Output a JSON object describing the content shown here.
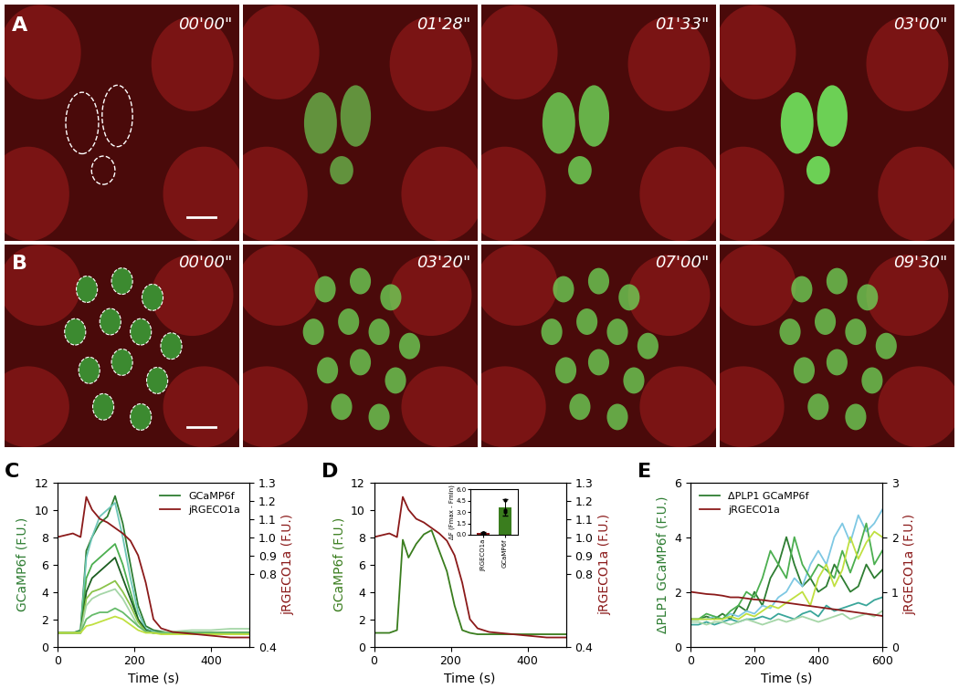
{
  "image_panels": [
    {
      "label": "A",
      "timestamps": [
        "00'00\"",
        "01'28\"",
        "01'33\"",
        "03'00\""
      ]
    },
    {
      "label": "B",
      "timestamps": [
        "00'00\"",
        "03'20\"",
        "07'00\"",
        "09'30\""
      ]
    }
  ],
  "chart_data": [
    {
      "type": "line",
      "label": "C",
      "x": [
        0,
        20,
        40,
        60,
        75,
        90,
        110,
        130,
        150,
        170,
        190,
        210,
        230,
        250,
        270,
        300,
        350,
        400,
        450,
        500
      ],
      "xlim": [
        0,
        500
      ],
      "xticks": [
        0,
        200,
        400
      ],
      "xlabel": "Time (s)",
      "ylabel": "GCaMP6f (F.U.)",
      "ylim": [
        0,
        12
      ],
      "yticks": [
        0,
        2,
        4,
        6,
        8,
        10,
        12
      ],
      "y2label": "jRGECO1a (F.U.)",
      "y2lim": [
        0.4,
        1.3
      ],
      "y2ticks": [
        0.4,
        0.8,
        0.9,
        1.0,
        1.1,
        1.2,
        1.3
      ],
      "legend": "upper right",
      "series": [
        {
          "name": "GCaMP6f",
          "color": "#2e7d32",
          "values": [
            1,
            1,
            1,
            1.2,
            7,
            8,
            9,
            9.5,
            11,
            9,
            6,
            3,
            1.5,
            1.2,
            1.1,
            1.0,
            1.0,
            1.0,
            1.0,
            1.0
          ]
        },
        {
          "color": "#6ec6b8",
          "values": [
            1,
            1,
            1,
            1.1,
            6.5,
            8,
            9.5,
            10,
            10.5,
            8,
            5,
            2.5,
            1.3,
            1.1,
            1,
            1,
            1,
            1,
            1,
            1
          ]
        },
        {
          "color": "#4caf50",
          "values": [
            1,
            1,
            1,
            1.1,
            5,
            6,
            6.5,
            7,
            7.5,
            6,
            4,
            2,
            1.2,
            1,
            1,
            1,
            1,
            1,
            1,
            1
          ]
        },
        {
          "color": "#1b5e20",
          "values": [
            1,
            1,
            1,
            1,
            4,
            5,
            5.5,
            6,
            6.5,
            5,
            3.5,
            2,
            1.2,
            1,
            1,
            1,
            1,
            1,
            1,
            1
          ]
        },
        {
          "color": "#8bc34a",
          "values": [
            1,
            1,
            1,
            1,
            3.5,
            4,
            4.2,
            4.5,
            4.8,
            4,
            3,
            1.8,
            1.1,
            1,
            1,
            1,
            1,
            1,
            1,
            1
          ]
        },
        {
          "color": "#a5d6a7",
          "values": [
            1,
            1,
            1,
            1,
            3,
            3.5,
            3.8,
            4,
            4.2,
            3.5,
            2.5,
            1.5,
            1.1,
            1,
            1,
            1.1,
            1.2,
            1.2,
            1.3,
            1.3
          ]
        },
        {
          "color": "#66bb6a",
          "values": [
            1,
            1,
            1,
            1,
            2,
            2.3,
            2.5,
            2.5,
            2.8,
            2.5,
            2,
            1.5,
            1.1,
            1,
            1,
            1,
            1,
            1,
            1,
            1
          ]
        },
        {
          "color": "#c0e040",
          "values": [
            1,
            1,
            1,
            1,
            1.5,
            1.6,
            1.8,
            2,
            2.2,
            2,
            1.6,
            1.2,
            1,
            1,
            0.9,
            0.9,
            0.9,
            0.9,
            0.9,
            0.9
          ]
        },
        {
          "name": "jRGECO1a",
          "color": "#8b1a1a",
          "axis": "y2",
          "values": [
            1.0,
            1.01,
            1.02,
            1.0,
            1.22,
            1.15,
            1.1,
            1.08,
            1.05,
            1.02,
            0.98,
            0.9,
            0.75,
            0.55,
            0.5,
            0.48,
            0.47,
            0.46,
            0.45,
            0.45
          ]
        }
      ]
    },
    {
      "type": "line",
      "label": "D",
      "x": [
        0,
        20,
        40,
        60,
        75,
        90,
        110,
        130,
        150,
        170,
        190,
        210,
        230,
        250,
        270,
        300,
        350,
        400,
        450,
        500
      ],
      "xlim": [
        0,
        500
      ],
      "xticks": [
        0,
        200,
        400
      ],
      "xlabel": "Time (s)",
      "ylabel": "GCaMP6f (F.U.)",
      "ylim": [
        0,
        12
      ],
      "yticks": [
        0,
        2,
        4,
        6,
        8,
        10,
        12
      ],
      "y2label": "jRGECO1a (F.U.)",
      "y2lim": [
        0.4,
        1.3
      ],
      "y2ticks": [
        0.4,
        0.8,
        0.9,
        1.0,
        1.1,
        1.2,
        1.3
      ],
      "series": [
        {
          "color": "#3a7d1e",
          "values": [
            1,
            1,
            1,
            1.2,
            7.8,
            6.5,
            7.5,
            8.2,
            8.5,
            7,
            5.5,
            3,
            1.2,
            1,
            0.9,
            0.9,
            0.9,
            0.9,
            0.9,
            0.9
          ]
        },
        {
          "color": "#8b1a1a",
          "axis": "y2",
          "values": [
            1.0,
            1.01,
            1.02,
            1.0,
            1.22,
            1.15,
            1.1,
            1.08,
            1.05,
            1.02,
            0.98,
            0.9,
            0.75,
            0.55,
            0.5,
            0.48,
            0.47,
            0.46,
            0.45,
            0.45
          ]
        }
      ],
      "inset": {
        "type": "bar",
        "categories": [
          "jRGECO1a",
          "GCaMP6f"
        ],
        "values": [
          0.25,
          3.6
        ],
        "errors": [
          0.1,
          1.1
        ],
        "points": [
          [
            0.3,
            0.2,
            0.25
          ],
          [
            4.6,
            3.0,
            3.2
          ]
        ],
        "colors": [
          "#8b1a1a",
          "#3a7d1e"
        ],
        "ylabel": "ΔF (Fmax - Fmin)",
        "ylim": [
          0.0,
          6.0
        ],
        "yticks": [
          0.0,
          1.5,
          3.0,
          4.5,
          6.0
        ]
      }
    },
    {
      "type": "line",
      "label": "E",
      "x": [
        0,
        25,
        50,
        75,
        100,
        125,
        150,
        175,
        200,
        225,
        250,
        275,
        300,
        325,
        350,
        375,
        400,
        425,
        450,
        475,
        500,
        525,
        550,
        575,
        600
      ],
      "xlim": [
        0,
        600
      ],
      "xticks": [
        0,
        200,
        400,
        600
      ],
      "xlabel": "Time (s)",
      "ylabel": "ΔPLP1 GCaMP6f (F.U.)",
      "ylim": [
        0,
        6
      ],
      "yticks": [
        0,
        2,
        4,
        6
      ],
      "y2label": "jRGECO1a (F.U.)",
      "y2lim": [
        0,
        3
      ],
      "y2ticks": [
        0,
        1,
        2,
        3
      ],
      "legend": "upper left",
      "series": [
        {
          "name": "ΔPLP1 GCaMP6f",
          "color": "#2e7d32",
          "values": [
            1,
            1,
            1.1,
            1,
            1.2,
            1,
            1.5,
            1.3,
            2,
            1.5,
            2.5,
            3,
            4,
            3,
            2.2,
            2.5,
            2,
            2.2,
            3,
            2.5,
            2,
            2.2,
            3,
            2.5,
            2.8
          ]
        },
        {
          "color": "#7ec8e3",
          "values": [
            1,
            1,
            1,
            1.1,
            1,
            1.2,
            1.1,
            1.3,
            1.2,
            1.5,
            1.4,
            1.8,
            2,
            2.5,
            2.2,
            3,
            3.5,
            3,
            4,
            4.5,
            3.8,
            4.8,
            4.2,
            4.5,
            5
          ]
        },
        {
          "color": "#4caf50",
          "values": [
            1,
            1,
            1.2,
            1.1,
            1,
            1.3,
            1.5,
            2,
            1.8,
            2.5,
            3.5,
            3,
            2.5,
            4,
            3,
            2.5,
            3,
            2.8,
            2.5,
            3.5,
            2.7,
            3.5,
            4.5,
            3,
            3.5
          ]
        },
        {
          "color": "#c0e040",
          "values": [
            1,
            1,
            1,
            1,
            1,
            1.1,
            1,
            1.2,
            1.1,
            1.3,
            1.5,
            1.4,
            1.6,
            1.8,
            2,
            1.5,
            2.5,
            3,
            2.2,
            2.8,
            4,
            3.2,
            3.8,
            4.2,
            4
          ]
        },
        {
          "color": "#3aa69a",
          "values": [
            0.8,
            0.8,
            0.9,
            0.8,
            0.9,
            1,
            0.9,
            1,
            1,
            1.1,
            1,
            1.2,
            1.1,
            1,
            1.2,
            1.3,
            1.1,
            1.5,
            1.3,
            1.4,
            1.5,
            1.6,
            1.5,
            1.7,
            1.8
          ]
        },
        {
          "color": "#a5d6a7",
          "values": [
            0.9,
            0.9,
            0.8,
            0.9,
            0.9,
            0.8,
            0.9,
            1,
            0.9,
            0.8,
            0.9,
            1,
            0.9,
            1,
            1.1,
            1,
            0.9,
            1,
            1.1,
            1.2,
            1,
            1.1,
            1.2,
            1.1,
            1.3
          ]
        },
        {
          "name": "jRGECO1a",
          "color": "#8b1a1a",
          "axis": "y2",
          "values": [
            1.0,
            0.98,
            0.96,
            0.95,
            0.93,
            0.9,
            0.9,
            0.88,
            0.86,
            0.85,
            0.83,
            0.82,
            0.8,
            0.78,
            0.76,
            0.74,
            0.72,
            0.7,
            0.68,
            0.66,
            0.64,
            0.62,
            0.6,
            0.58,
            0.56
          ]
        }
      ]
    }
  ]
}
